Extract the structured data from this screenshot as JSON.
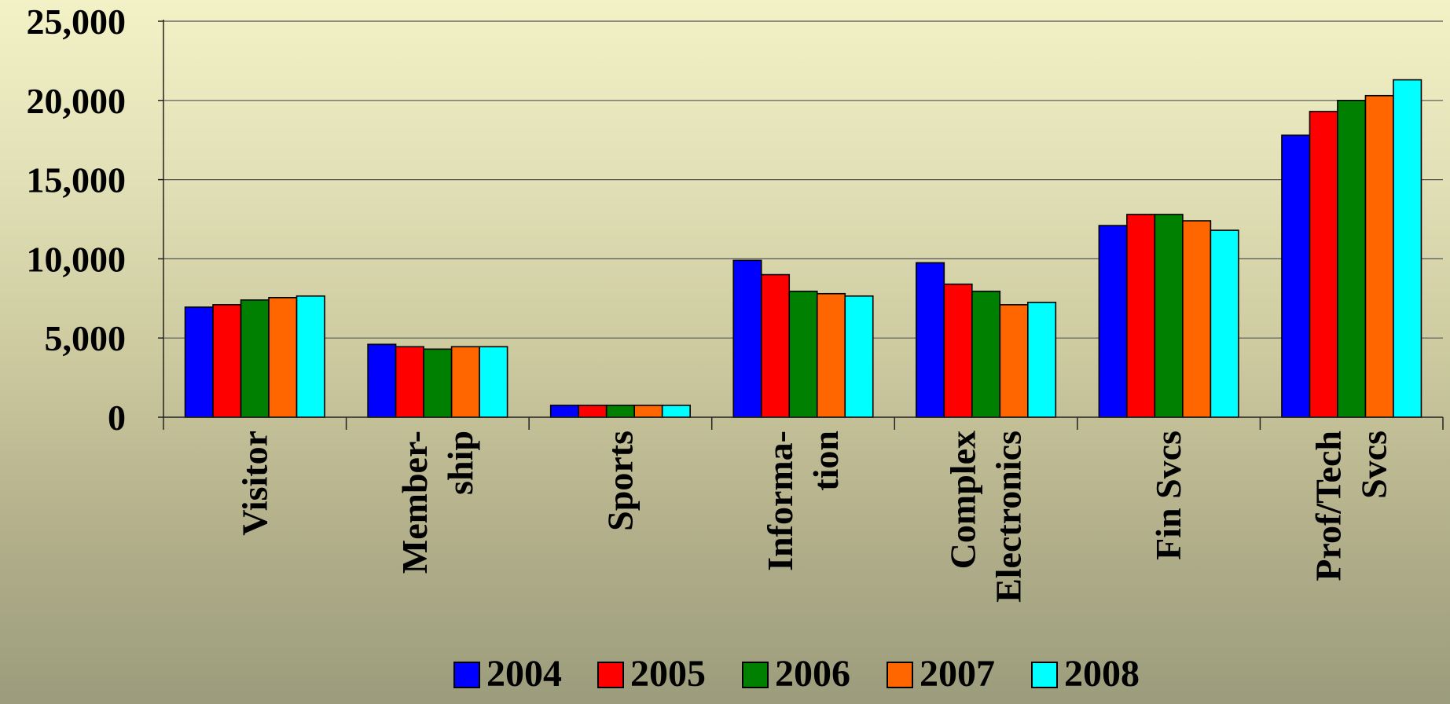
{
  "chart_data": {
    "type": "bar",
    "title": "",
    "xlabel": "",
    "ylabel": "",
    "ylim": [
      0,
      25000
    ],
    "yticks": [
      0,
      5000,
      10000,
      15000,
      20000,
      25000
    ],
    "ytick_labels": [
      "0",
      "5,000",
      "10,000",
      "15,000",
      "20,000",
      "25,000"
    ],
    "grid": true,
    "legend_position": "bottom",
    "categories": [
      [
        "Visitor"
      ],
      [
        "Member-",
        "ship"
      ],
      [
        "Sports"
      ],
      [
        "Informa-",
        "tion"
      ],
      [
        "Complex",
        "Electronics"
      ],
      [
        "Fin Svcs"
      ],
      [
        "Prof/Tech",
        "Svcs"
      ]
    ],
    "series": [
      {
        "name": "2004",
        "color": "#0000ff",
        "values": [
          6950,
          4600,
          750,
          9900,
          9750,
          12100,
          17800
        ]
      },
      {
        "name": "2005",
        "color": "#ff0000",
        "values": [
          7100,
          4450,
          750,
          9000,
          8400,
          12800,
          19300
        ]
      },
      {
        "name": "2006",
        "color": "#008000",
        "values": [
          7400,
          4300,
          750,
          7950,
          7950,
          12800,
          20000
        ]
      },
      {
        "name": "2007",
        "color": "#ff6600",
        "values": [
          7550,
          4450,
          750,
          7800,
          7100,
          12400,
          20300
        ]
      },
      {
        "name": "2008",
        "color": "#00ffff",
        "values": [
          7650,
          4450,
          750,
          7650,
          7250,
          11800,
          21300
        ]
      }
    ]
  }
}
